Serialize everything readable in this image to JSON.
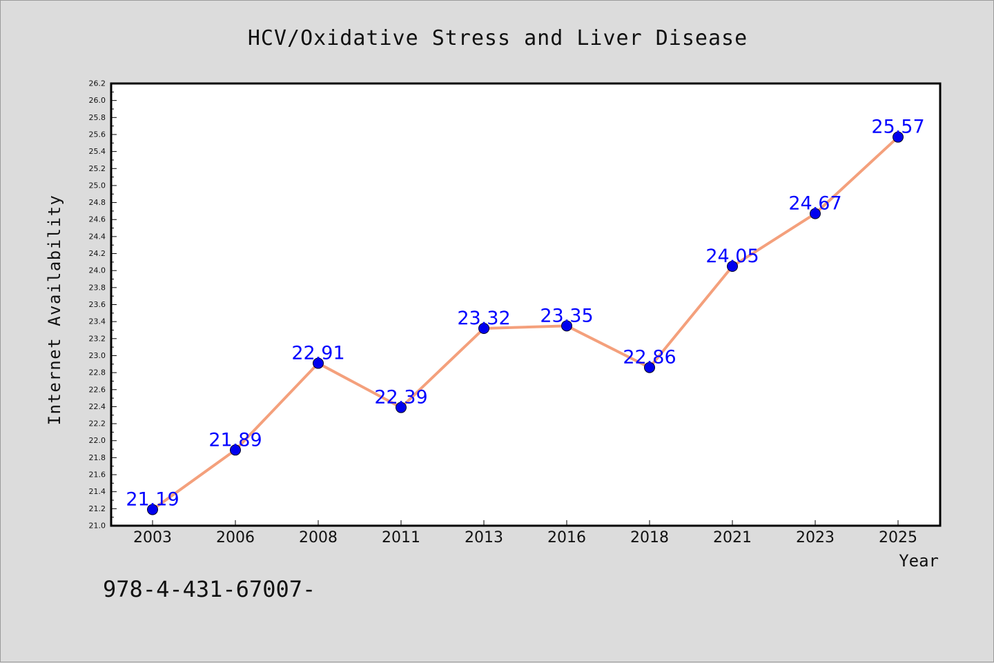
{
  "chart_data": {
    "type": "line",
    "title": "HCV/Oxidative Stress and Liver Disease",
    "xlabel": "Year",
    "ylabel": "Internet Availability",
    "categories": [
      "2003",
      "2006",
      "2008",
      "2011",
      "2013",
      "2016",
      "2018",
      "2021",
      "2023",
      "2025"
    ],
    "series": [
      {
        "values": [
          21.19,
          21.89,
          22.91,
          22.39,
          23.32,
          23.35,
          22.86,
          24.05,
          24.67,
          25.57
        ]
      }
    ],
    "ylim": [
      21.0,
      26.2
    ],
    "y_major_step": 0.2,
    "y_minor_step": 0.1,
    "y_tick_decimals": 1,
    "grid": false,
    "legend": "none",
    "colors": {
      "line": "#f4a07c",
      "marker": "#0000ee",
      "data_label": "#0000ff",
      "plot_background": "#ffffff",
      "figure_background": "#dcdcdc"
    }
  },
  "footer": {
    "code": "978-4-431-67007-"
  }
}
